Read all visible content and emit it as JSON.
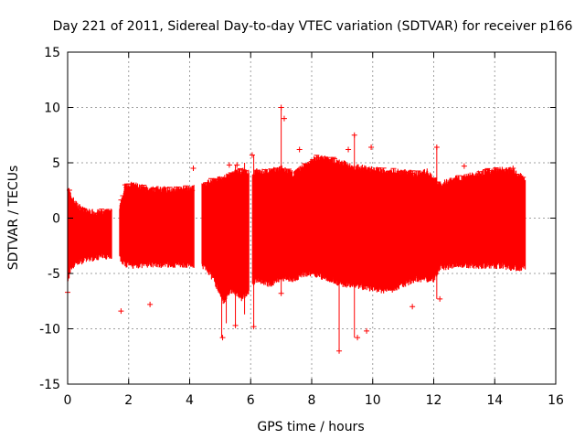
{
  "chart_data": {
    "type": "scatter",
    "title": "Day 221 of 2011, Sidereal Day-to-day VTEC variation (SDTVAR) for receiver p166",
    "xlabel": "GPS time / hours",
    "ylabel": "SDTVAR / TECUs",
    "xlim": [
      0,
      16
    ],
    "ylim": [
      -15,
      15
    ],
    "xticks": [
      0,
      2,
      4,
      6,
      8,
      10,
      12,
      14,
      16
    ],
    "yticks": [
      -15,
      -10,
      -5,
      0,
      5,
      10,
      15
    ],
    "grid": true,
    "series": [
      {
        "name": "SDTVAR",
        "color": "#ff0000",
        "marker": "+",
        "style": "dense vertical error-bar band",
        "band": {
          "x": [
            0.0,
            0.1,
            0.3,
            0.6,
            1.0,
            1.4,
            1.7,
            1.9,
            2.2,
            2.6,
            3.0,
            3.4,
            3.8,
            4.1,
            4.5,
            4.8,
            5.1,
            5.4,
            5.7,
            6.0,
            6.2,
            6.6,
            7.0,
            7.4,
            7.8,
            8.2,
            8.6,
            9.0,
            9.4,
            9.8,
            10.2,
            10.6,
            11.0,
            11.4,
            11.8,
            12.0,
            12.2,
            12.6,
            13.0,
            13.4,
            13.8,
            14.2,
            14.6,
            15.0
          ],
          "upper": [
            3.0,
            2.0,
            1.2,
            0.6,
            0.5,
            0.6,
            0.8,
            3.0,
            3.0,
            2.6,
            2.6,
            2.6,
            2.6,
            2.7,
            3.0,
            3.5,
            3.6,
            4.0,
            4.3,
            4.0,
            4.2,
            4.2,
            4.5,
            4.0,
            4.8,
            5.5,
            5.3,
            5.0,
            4.6,
            4.5,
            4.3,
            4.2,
            4.2,
            4.0,
            4.2,
            3.6,
            3.0,
            3.5,
            3.7,
            4.0,
            4.2,
            4.4,
            4.3,
            3.5
          ],
          "lower": [
            -6.0,
            -4.5,
            -4.0,
            -3.8,
            -3.5,
            -3.4,
            -3.6,
            -4.2,
            -4.3,
            -4.2,
            -4.2,
            -4.2,
            -4.2,
            -4.2,
            -4.4,
            -5.6,
            -7.5,
            -6.5,
            -7.2,
            -6.5,
            -5.5,
            -6.0,
            -5.5,
            -5.5,
            -5.0,
            -5.2,
            -5.5,
            -6.0,
            -6.0,
            -6.3,
            -6.5,
            -6.5,
            -6.0,
            -5.5,
            -5.5,
            -5.5,
            -4.5,
            -4.3,
            -4.2,
            -4.3,
            -4.3,
            -4.3,
            -4.5,
            -4.5
          ]
        },
        "gaps": [
          [
            1.45,
            1.7
          ],
          [
            4.15,
            4.4
          ],
          [
            5.95,
            6.05
          ]
        ],
        "outliers": [
          {
            "x": 0.0,
            "y": -6.7
          },
          {
            "x": 1.75,
            "y": -8.4
          },
          {
            "x": 2.7,
            "y": -7.8
          },
          {
            "x": 4.12,
            "y": 4.5
          },
          {
            "x": 5.08,
            "y": -10.8
          },
          {
            "x": 5.5,
            "y": -9.7
          },
          {
            "x": 5.3,
            "y": 4.8
          },
          {
            "x": 5.55,
            "y": 4.8
          },
          {
            "x": 6.1,
            "y": -9.8
          },
          {
            "x": 6.05,
            "y": 5.7
          },
          {
            "x": 7.0,
            "y": 10.0
          },
          {
            "x": 7.1,
            "y": 9.0
          },
          {
            "x": 7.0,
            "y": -6.8
          },
          {
            "x": 7.6,
            "y": 6.2
          },
          {
            "x": 8.9,
            "y": -12.0
          },
          {
            "x": 9.2,
            "y": 6.2
          },
          {
            "x": 9.4,
            "y": 7.5
          },
          {
            "x": 9.5,
            "y": -10.8
          },
          {
            "x": 9.8,
            "y": -10.2
          },
          {
            "x": 9.95,
            "y": 6.4
          },
          {
            "x": 11.3,
            "y": -8.0
          },
          {
            "x": 12.1,
            "y": 6.4
          },
          {
            "x": 12.2,
            "y": -7.3
          },
          {
            "x": 13.0,
            "y": 4.7
          },
          {
            "x": 14.6,
            "y": 4.5
          }
        ],
        "spikes": [
          {
            "x": 5.05,
            "top": 3.5,
            "bottom": -10.8
          },
          {
            "x": 5.2,
            "top": 3.6,
            "bottom": -9.5
          },
          {
            "x": 5.5,
            "top": 4.8,
            "bottom": -9.7
          },
          {
            "x": 5.8,
            "top": 5.0,
            "bottom": -8.7
          },
          {
            "x": 6.1,
            "top": 5.7,
            "bottom": -9.8
          },
          {
            "x": 7.0,
            "top": 10.0,
            "bottom": -6.8
          },
          {
            "x": 8.9,
            "top": 5.0,
            "bottom": -12.0
          },
          {
            "x": 9.4,
            "top": 7.5,
            "bottom": -10.8
          },
          {
            "x": 12.1,
            "top": 6.4,
            "bottom": -7.3
          }
        ]
      }
    ]
  }
}
